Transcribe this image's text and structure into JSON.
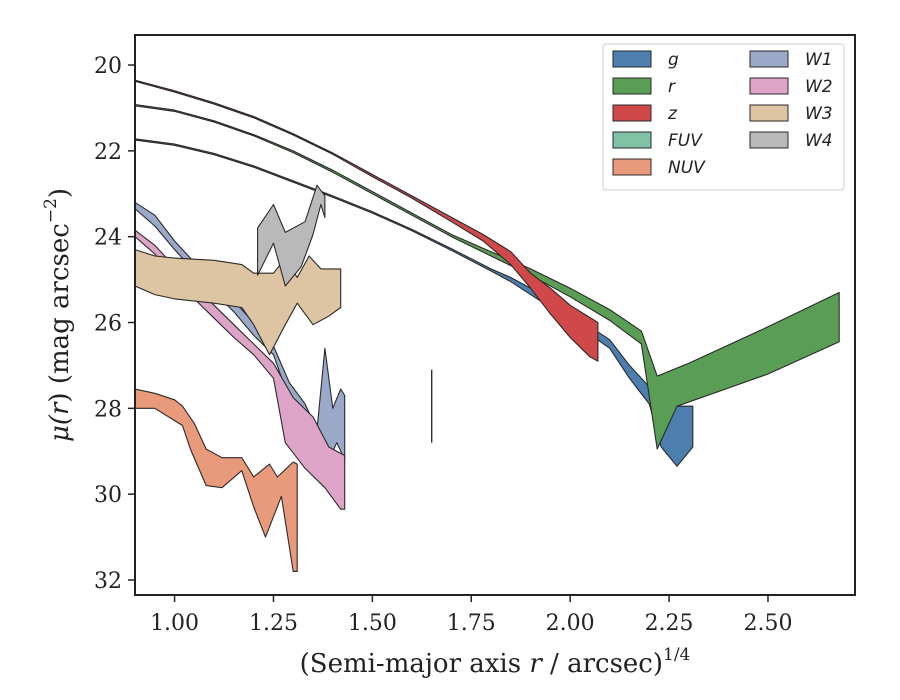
{
  "chart_data": {
    "type": "area",
    "xlabel": "(Semi-major axis r / arcsec)^1/4",
    "xlabel_parts": {
      "pre": "(Semi-major axis ",
      "var": "r",
      "post": " / arcsec)",
      "sup": "1/4"
    },
    "ylabel": "μ(r) (mag arcsec^−2)",
    "ylabel_parts": {
      "pre": "μ(",
      "var": "r",
      "mid": ") (mag arcsec",
      "sup": "−2",
      "post": ")"
    },
    "xlim": [
      0.9,
      2.72
    ],
    "ylim": [
      32.35,
      19.3
    ],
    "y_inverted": true,
    "xticks": [
      1.0,
      1.25,
      1.5,
      1.75,
      2.0,
      2.25,
      2.5
    ],
    "xtick_labels": [
      "1.00",
      "1.25",
      "1.50",
      "1.75",
      "2.00",
      "2.25",
      "2.50"
    ],
    "yticks": [
      20,
      22,
      24,
      26,
      28,
      30,
      32
    ],
    "ytick_labels": [
      "20",
      "22",
      "24",
      "26",
      "28",
      "30",
      "32"
    ],
    "legend_position": "top-right",
    "legend_columns": 2,
    "legend": [
      "g",
      "r",
      "z",
      "FUV",
      "NUV",
      "W1",
      "W2",
      "W3",
      "W4"
    ],
    "series": [
      {
        "name": "g",
        "color": "#4c7fae",
        "upper": [
          [
            0.9,
            21.72
          ],
          [
            1.0,
            21.84
          ],
          [
            1.1,
            22.06
          ],
          [
            1.2,
            22.35
          ],
          [
            1.3,
            22.7
          ],
          [
            1.4,
            23.05
          ],
          [
            1.5,
            23.42
          ],
          [
            1.6,
            23.83
          ],
          [
            1.7,
            24.28
          ],
          [
            1.8,
            24.75
          ],
          [
            1.85,
            24.95
          ],
          [
            1.9,
            25.2
          ],
          [
            2.0,
            25.8
          ],
          [
            2.1,
            26.4
          ],
          [
            2.15,
            27.0
          ],
          [
            2.2,
            27.5
          ],
          [
            2.25,
            27.95
          ],
          [
            2.31,
            27.95
          ]
        ],
        "lower": [
          [
            0.9,
            21.75
          ],
          [
            1.0,
            21.87
          ],
          [
            1.1,
            22.09
          ],
          [
            1.2,
            22.38
          ],
          [
            1.3,
            22.73
          ],
          [
            1.4,
            23.08
          ],
          [
            1.5,
            23.45
          ],
          [
            1.6,
            23.86
          ],
          [
            1.7,
            24.32
          ],
          [
            1.8,
            24.8
          ],
          [
            1.85,
            25.05
          ],
          [
            1.9,
            25.35
          ],
          [
            2.0,
            25.95
          ],
          [
            2.1,
            26.6
          ],
          [
            2.15,
            27.3
          ],
          [
            2.2,
            27.9
          ],
          [
            2.23,
            28.9
          ],
          [
            2.27,
            29.35
          ],
          [
            2.31,
            28.9
          ]
        ]
      },
      {
        "name": "r",
        "color": "#5a9e56",
        "upper": [
          [
            0.9,
            20.92
          ],
          [
            1.0,
            21.05
          ],
          [
            1.1,
            21.3
          ],
          [
            1.2,
            21.62
          ],
          [
            1.3,
            22.0
          ],
          [
            1.4,
            22.45
          ],
          [
            1.5,
            22.95
          ],
          [
            1.6,
            23.45
          ],
          [
            1.7,
            23.95
          ],
          [
            1.8,
            24.35
          ],
          [
            1.9,
            24.75
          ],
          [
            2.0,
            25.2
          ],
          [
            2.1,
            25.7
          ],
          [
            2.18,
            26.2
          ],
          [
            2.22,
            27.25
          ],
          [
            2.3,
            26.95
          ],
          [
            2.5,
            26.1
          ],
          [
            2.68,
            25.3
          ]
        ],
        "lower": [
          [
            0.9,
            20.95
          ],
          [
            1.0,
            21.08
          ],
          [
            1.1,
            21.33
          ],
          [
            1.2,
            21.65
          ],
          [
            1.3,
            22.04
          ],
          [
            1.4,
            22.5
          ],
          [
            1.5,
            23.0
          ],
          [
            1.6,
            23.5
          ],
          [
            1.7,
            24.0
          ],
          [
            1.8,
            24.45
          ],
          [
            1.9,
            24.9
          ],
          [
            2.0,
            25.4
          ],
          [
            2.1,
            25.95
          ],
          [
            2.18,
            26.5
          ],
          [
            2.22,
            28.95
          ],
          [
            2.27,
            27.95
          ],
          [
            2.5,
            27.2
          ],
          [
            2.68,
            26.45
          ]
        ]
      },
      {
        "name": "z",
        "color": "#d0484a",
        "upper": [
          [
            0.9,
            20.35
          ],
          [
            1.0,
            20.6
          ],
          [
            1.1,
            20.88
          ],
          [
            1.2,
            21.2
          ],
          [
            1.3,
            21.6
          ],
          [
            1.4,
            22.05
          ],
          [
            1.5,
            22.55
          ],
          [
            1.6,
            23.05
          ],
          [
            1.7,
            23.55
          ],
          [
            1.78,
            23.95
          ],
          [
            1.85,
            24.35
          ],
          [
            1.9,
            24.85
          ],
          [
            1.95,
            25.2
          ],
          [
            2.0,
            25.6
          ],
          [
            2.07,
            26.0
          ]
        ],
        "lower": [
          [
            0.9,
            20.38
          ],
          [
            1.0,
            20.63
          ],
          [
            1.1,
            20.91
          ],
          [
            1.2,
            21.23
          ],
          [
            1.3,
            21.63
          ],
          [
            1.4,
            22.08
          ],
          [
            1.5,
            22.6
          ],
          [
            1.6,
            23.1
          ],
          [
            1.7,
            23.65
          ],
          [
            1.78,
            24.1
          ],
          [
            1.85,
            24.65
          ],
          [
            1.9,
            25.2
          ],
          [
            1.95,
            25.8
          ],
          [
            2.0,
            26.35
          ],
          [
            2.05,
            26.8
          ],
          [
            2.07,
            26.9
          ]
        ]
      },
      {
        "name": "FUV",
        "color": "#7fc2a6",
        "upper": [],
        "lower": []
      },
      {
        "name": "NUV",
        "color": "#e89a7a",
        "upper": [
          [
            0.9,
            27.55
          ],
          [
            0.95,
            27.65
          ],
          [
            1.0,
            27.8
          ],
          [
            1.02,
            27.95
          ],
          [
            1.05,
            28.35
          ],
          [
            1.08,
            28.95
          ],
          [
            1.12,
            29.15
          ],
          [
            1.17,
            29.15
          ],
          [
            1.2,
            29.6
          ],
          [
            1.24,
            29.3
          ],
          [
            1.26,
            29.6
          ],
          [
            1.3,
            29.25
          ],
          [
            1.31,
            29.3
          ]
        ],
        "lower": [
          [
            0.9,
            28.0
          ],
          [
            0.95,
            28.0
          ],
          [
            1.02,
            28.4
          ],
          [
            1.04,
            28.95
          ],
          [
            1.08,
            29.8
          ],
          [
            1.12,
            29.85
          ],
          [
            1.17,
            29.45
          ],
          [
            1.2,
            30.3
          ],
          [
            1.23,
            31.0
          ],
          [
            1.27,
            30.05
          ],
          [
            1.3,
            31.8
          ],
          [
            1.31,
            31.8
          ]
        ]
      },
      {
        "name": "W1",
        "color": "#9aa9c8",
        "upper": [
          [
            0.9,
            23.2
          ],
          [
            0.95,
            23.5
          ],
          [
            1.0,
            24.1
          ],
          [
            1.05,
            24.6
          ],
          [
            1.1,
            25.05
          ],
          [
            1.15,
            25.5
          ],
          [
            1.2,
            26.0
          ],
          [
            1.25,
            26.55
          ],
          [
            1.29,
            27.4
          ],
          [
            1.33,
            27.9
          ],
          [
            1.36,
            28.5
          ],
          [
            1.38,
            26.6
          ],
          [
            1.4,
            28.0
          ],
          [
            1.42,
            27.55
          ],
          [
            1.43,
            27.7
          ]
        ],
        "lower": [
          [
            0.9,
            23.35
          ],
          [
            0.95,
            23.75
          ],
          [
            1.0,
            24.3
          ],
          [
            1.05,
            24.8
          ],
          [
            1.1,
            25.3
          ],
          [
            1.15,
            25.75
          ],
          [
            1.2,
            26.3
          ],
          [
            1.25,
            26.75
          ],
          [
            1.29,
            27.8
          ],
          [
            1.33,
            28.3
          ],
          [
            1.37,
            28.9
          ],
          [
            1.39,
            29.2
          ],
          [
            1.41,
            28.8
          ],
          [
            1.43,
            29.2
          ]
        ]
      },
      {
        "name": "W2",
        "color": "#dea4c8",
        "upper": [
          [
            0.9,
            23.85
          ],
          [
            0.95,
            24.2
          ],
          [
            1.0,
            24.7
          ],
          [
            1.05,
            25.15
          ],
          [
            1.1,
            25.6
          ],
          [
            1.15,
            26.05
          ],
          [
            1.2,
            26.5
          ],
          [
            1.25,
            26.95
          ],
          [
            1.3,
            27.75
          ],
          [
            1.35,
            28.2
          ],
          [
            1.39,
            28.9
          ],
          [
            1.43,
            29.1
          ]
        ],
        "lower": [
          [
            0.9,
            24.0
          ],
          [
            0.95,
            24.4
          ],
          [
            1.0,
            24.95
          ],
          [
            1.05,
            25.45
          ],
          [
            1.1,
            25.9
          ],
          [
            1.15,
            26.35
          ],
          [
            1.2,
            26.75
          ],
          [
            1.25,
            27.3
          ],
          [
            1.28,
            28.8
          ],
          [
            1.33,
            29.4
          ],
          [
            1.38,
            29.85
          ],
          [
            1.42,
            30.35
          ],
          [
            1.43,
            30.35
          ]
        ]
      },
      {
        "name": "W3",
        "color": "#ddc4a2",
        "upper": [
          [
            0.9,
            24.3
          ],
          [
            0.95,
            24.45
          ],
          [
            1.0,
            24.5
          ],
          [
            1.1,
            24.55
          ],
          [
            1.17,
            24.65
          ],
          [
            1.2,
            24.85
          ],
          [
            1.25,
            24.85
          ],
          [
            1.28,
            24.5
          ],
          [
            1.31,
            24.95
          ],
          [
            1.34,
            24.45
          ],
          [
            1.37,
            24.75
          ],
          [
            1.42,
            24.75
          ]
        ],
        "lower": [
          [
            0.9,
            25.15
          ],
          [
            0.95,
            25.35
          ],
          [
            1.0,
            25.45
          ],
          [
            1.1,
            25.55
          ],
          [
            1.17,
            25.65
          ],
          [
            1.2,
            26.05
          ],
          [
            1.24,
            26.75
          ],
          [
            1.28,
            26.05
          ],
          [
            1.31,
            25.55
          ],
          [
            1.35,
            26.05
          ],
          [
            1.39,
            25.85
          ],
          [
            1.42,
            25.65
          ]
        ]
      },
      {
        "name": "W4",
        "color": "#b9b9b9",
        "upper": [
          [
            1.21,
            23.8
          ],
          [
            1.25,
            23.25
          ],
          [
            1.28,
            23.9
          ],
          [
            1.33,
            23.65
          ],
          [
            1.36,
            22.8
          ],
          [
            1.38,
            23.05
          ]
        ],
        "lower": [
          [
            1.21,
            24.9
          ],
          [
            1.25,
            24.15
          ],
          [
            1.28,
            25.15
          ],
          [
            1.32,
            24.7
          ],
          [
            1.35,
            23.95
          ],
          [
            1.37,
            23.25
          ],
          [
            1.38,
            23.55
          ]
        ]
      }
    ],
    "marker_line": {
      "x": 1.65,
      "y": [
        27.1,
        28.8
      ]
    }
  }
}
